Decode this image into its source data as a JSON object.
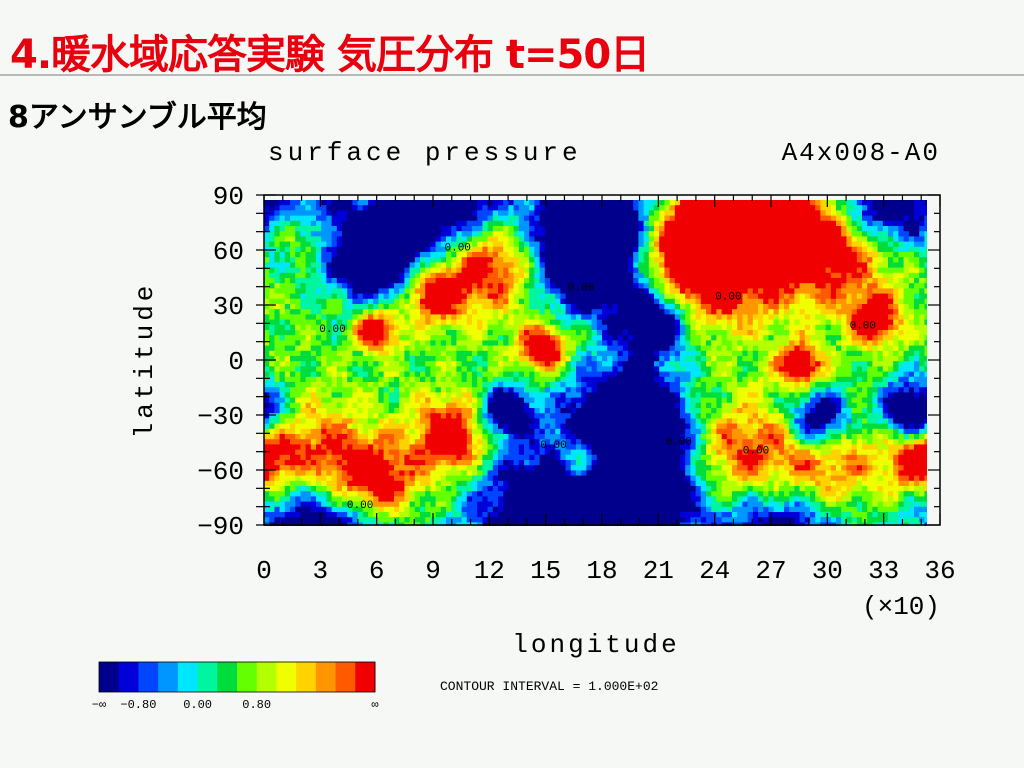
{
  "slide": {
    "title": "4.暖水域応答実験 気圧分布 t=50日",
    "subtitle": "8アンサンブル平均"
  },
  "chart_data": {
    "type": "heatmap",
    "title": "surface pressure",
    "run_id": "A4x008-A0",
    "xlabel": "longitude",
    "ylabel": "latitude",
    "x_multiplier_label": "(×10)",
    "xlim": [
      0,
      36
    ],
    "ylim": [
      -90,
      90
    ],
    "xticks": [
      0,
      3,
      6,
      9,
      12,
      15,
      18,
      21,
      24,
      27,
      30,
      33,
      36
    ],
    "yticks": [
      90,
      60,
      30,
      0,
      -30,
      -60,
      -90
    ],
    "ytick_labels": [
      "90",
      "60",
      "30",
      "0",
      "−30",
      "−60",
      "−90"
    ],
    "contour_interval_text": "CONTOUR INTERVAL = 1.000E+02",
    "contour_label": "0.00",
    "colorbar": {
      "colors": [
        "#00008c",
        "#0000d8",
        "#0046ff",
        "#0096ff",
        "#00e6ff",
        "#00f5a0",
        "#00dc3c",
        "#64ff00",
        "#b4ff00",
        "#f0ff00",
        "#ffd200",
        "#ff9600",
        "#ff5a00",
        "#f00000"
      ],
      "tick_labels": [
        "−∞",
        "−0.80",
        "0.00",
        "0.80",
        "∞"
      ]
    },
    "highs": [
      {
        "lon": 20,
        "lat": 78,
        "r": 14
      },
      {
        "lon": 255,
        "lat": 72,
        "r": 26
      },
      {
        "lon": 310,
        "lat": 68,
        "r": 22
      },
      {
        "lon": 232,
        "lat": 60,
        "r": 22
      },
      {
        "lon": 118,
        "lat": 58,
        "r": 18
      },
      {
        "lon": 90,
        "lat": 40,
        "r": 11
      },
      {
        "lon": 30,
        "lat": -55,
        "r": 20
      },
      {
        "lon": 60,
        "lat": -65,
        "r": 15
      },
      {
        "lon": 100,
        "lat": -40,
        "r": 14
      },
      {
        "lon": 172,
        "lat": -52,
        "r": 10
      },
      {
        "lon": 255,
        "lat": -55,
        "r": 22
      },
      {
        "lon": 300,
        "lat": -58,
        "r": 22
      },
      {
        "lon": 355,
        "lat": -52,
        "r": 12
      },
      {
        "lon": 150,
        "lat": 10,
        "r": 9
      },
      {
        "lon": 330,
        "lat": 25,
        "r": 9
      },
      {
        "lon": 60,
        "lat": 20,
        "r": 8
      },
      {
        "lon": 290,
        "lat": 0,
        "r": 8
      }
    ],
    "lows": [
      {
        "lon": 20,
        "lat": 88,
        "r": 20
      },
      {
        "lon": 100,
        "lat": 88,
        "r": 22
      },
      {
        "lon": 180,
        "lat": 85,
        "r": 25
      },
      {
        "lon": 330,
        "lat": 88,
        "r": 18
      },
      {
        "lon": 60,
        "lat": 60,
        "r": 18
      },
      {
        "lon": 175,
        "lat": 55,
        "r": 18
      },
      {
        "lon": 210,
        "lat": 25,
        "r": 14
      },
      {
        "lon": 195,
        "lat": -30,
        "r": 22
      },
      {
        "lon": 205,
        "lat": -65,
        "r": 26
      },
      {
        "lon": 150,
        "lat": -85,
        "r": 28
      },
      {
        "lon": 30,
        "lat": -85,
        "r": 25
      },
      {
        "lon": 280,
        "lat": -85,
        "r": 28
      },
      {
        "lon": 350,
        "lat": -25,
        "r": 12
      },
      {
        "lon": 300,
        "lat": -30,
        "r": 12
      },
      {
        "lon": 130,
        "lat": -25,
        "r": 9
      }
    ],
    "zero_contour_labels": [
      {
        "lon": 98,
        "lat": 62
      },
      {
        "lon": 30,
        "lat": 17
      },
      {
        "lon": 165,
        "lat": 40
      },
      {
        "lon": 245,
        "lat": 35
      },
      {
        "lon": 318,
        "lat": 19
      },
      {
        "lon": 150,
        "lat": -47
      },
      {
        "lon": 218,
        "lat": -45
      },
      {
        "lon": 260,
        "lat": -50
      },
      {
        "lon": 45,
        "lat": -80
      }
    ]
  }
}
